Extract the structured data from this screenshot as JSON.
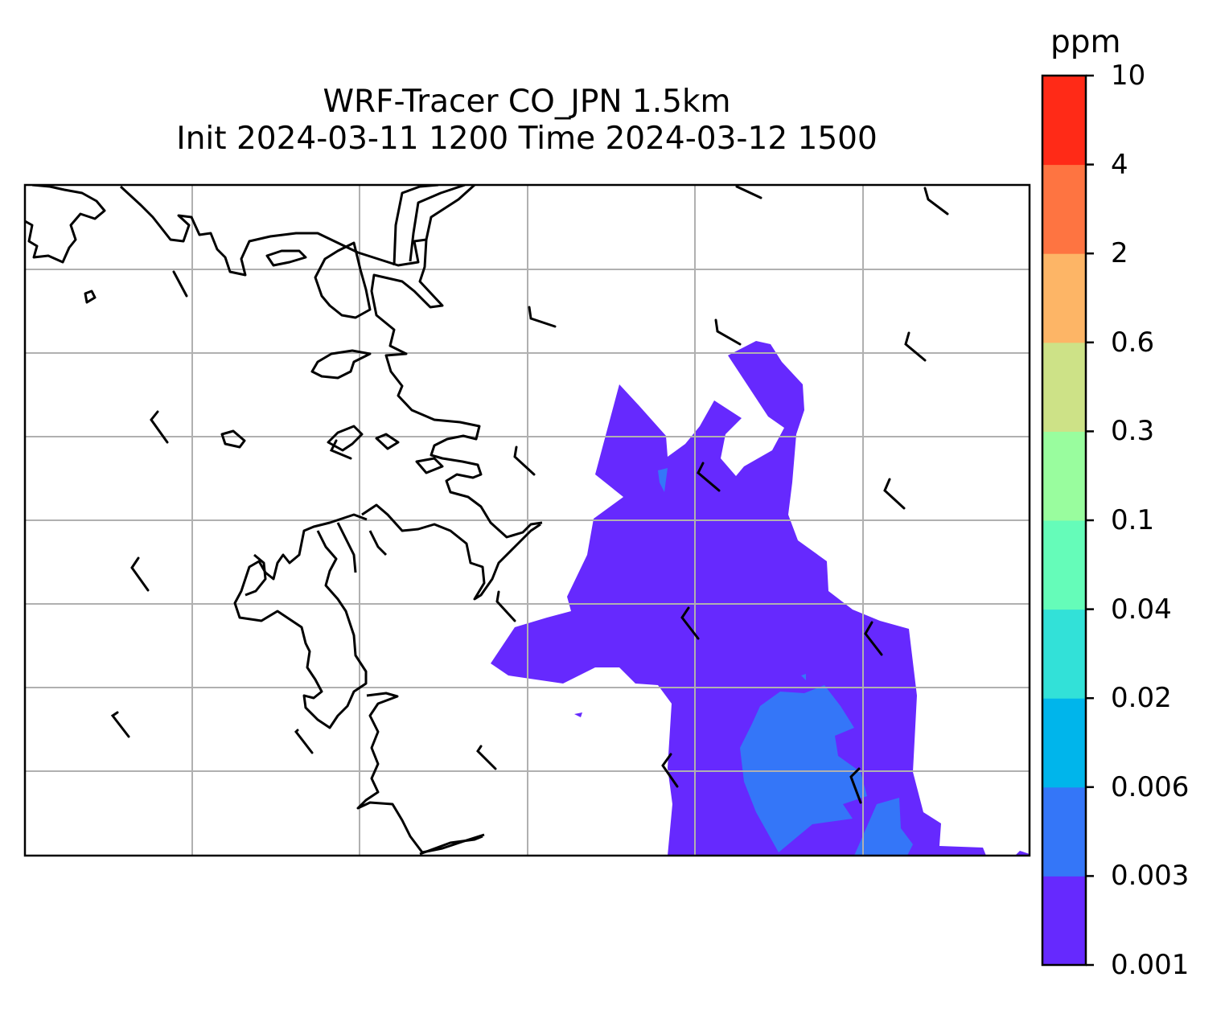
{
  "title": {
    "line1": "WRF-Tracer CO_JPN 1.5km",
    "line2": "Init 2024-03-11 1200 Time 2024-03-12 1500"
  },
  "colorbar": {
    "unit": "ppm",
    "levels": [
      "0.001",
      "0.003",
      "0.006",
      "0.02",
      "0.04",
      "0.1",
      "0.3",
      "0.6",
      "2",
      "4",
      "10"
    ],
    "colors": [
      "#6629fe",
      "#3476f8",
      "#00b5eb",
      "#32e1d8",
      "#65fcb9",
      "#99fd9e",
      "#cde287",
      "#fdb566",
      "#fe7441",
      "#ff2a17"
    ]
  },
  "map": {
    "field": "CO tracer concentration",
    "shaded_levels_present": [
      "0.001",
      "0.003"
    ],
    "gridlines": true,
    "wind_barbs": true,
    "coastline_color": "#000000",
    "grid_color": "#b0b0b0"
  }
}
